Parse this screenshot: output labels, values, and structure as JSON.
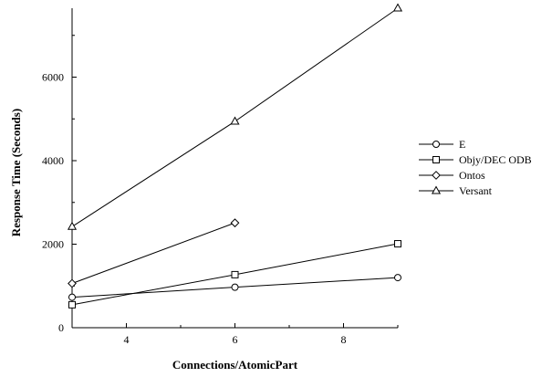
{
  "chart_data": {
    "type": "line",
    "xlabel": "Connections/AtomicPart",
    "ylabel": "Response Time (Seconds)",
    "xlim": [
      3,
      9
    ],
    "ylim": [
      0,
      7650
    ],
    "xticks": [
      4,
      6,
      8
    ],
    "yticks": [
      0,
      2000,
      4000,
      6000
    ],
    "grid": false,
    "legend_position": "right",
    "series": [
      {
        "name": "E",
        "marker": "circle",
        "x": [
          3,
          6,
          9
        ],
        "y": [
          730,
          970,
          1200
        ]
      },
      {
        "name": "Objy/DEC ODB",
        "marker": "square",
        "x": [
          3,
          6,
          9
        ],
        "y": [
          550,
          1270,
          2010
        ]
      },
      {
        "name": "Ontos",
        "marker": "diamond",
        "x": [
          3,
          6
        ],
        "y": [
          1060,
          2510
        ]
      },
      {
        "name": "Versant",
        "marker": "triangle",
        "x": [
          3,
          6,
          9
        ],
        "y": [
          2420,
          4940,
          7650
        ]
      }
    ]
  }
}
